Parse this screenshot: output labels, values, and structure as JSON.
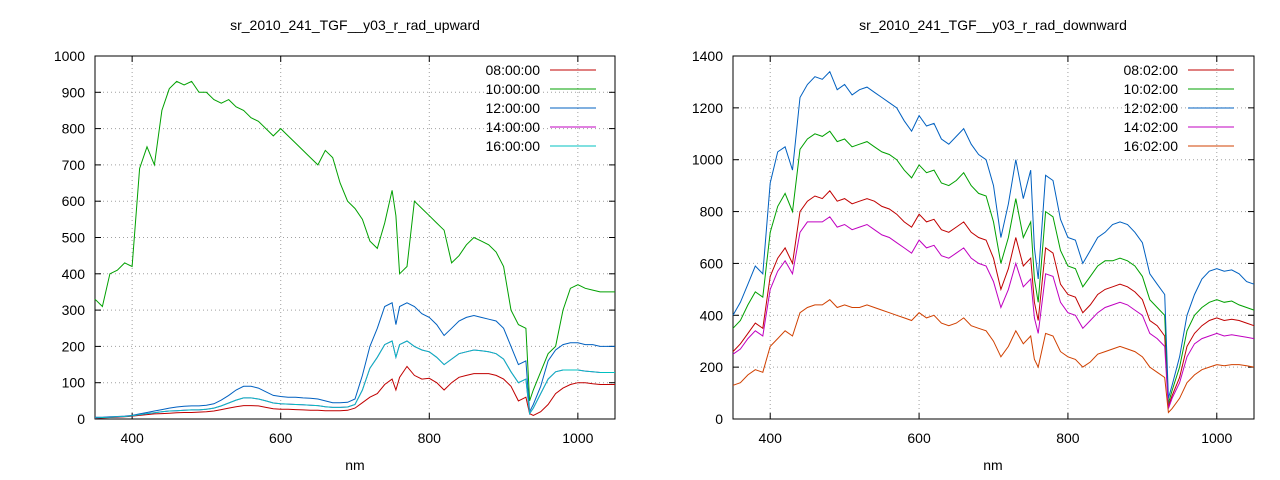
{
  "chart_data": [
    {
      "type": "line",
      "title": "sr_2010_241_TGF__y03_r_rad_upward",
      "xlabel": "nm",
      "ylabel": "",
      "xlim": [
        350,
        1050
      ],
      "ylim": [
        0,
        1000
      ],
      "xticks": [
        400,
        600,
        800,
        1000
      ],
      "yticks": [
        0,
        100,
        200,
        300,
        400,
        500,
        600,
        700,
        800,
        900,
        1000
      ],
      "grid": true,
      "legend_position": "top-right",
      "x": [
        350,
        360,
        370,
        380,
        390,
        400,
        410,
        420,
        430,
        440,
        450,
        460,
        470,
        480,
        490,
        500,
        510,
        520,
        530,
        540,
        550,
        560,
        570,
        580,
        590,
        600,
        610,
        620,
        630,
        640,
        650,
        660,
        670,
        680,
        690,
        700,
        710,
        720,
        730,
        740,
        750,
        755,
        760,
        770,
        780,
        790,
        800,
        810,
        820,
        830,
        840,
        850,
        860,
        870,
        880,
        890,
        900,
        910,
        920,
        930,
        935,
        940,
        950,
        960,
        970,
        980,
        990,
        1000,
        1010,
        1020,
        1030,
        1040,
        1050
      ],
      "series": [
        {
          "name": "08:00:00",
          "color": "#c00000",
          "values": [
            2,
            3,
            4,
            5,
            6,
            8,
            10,
            12,
            14,
            15,
            16,
            17,
            18,
            18,
            19,
            20,
            22,
            26,
            30,
            34,
            37,
            37,
            36,
            32,
            28,
            27,
            27,
            26,
            25,
            24,
            24,
            23,
            23,
            23,
            24,
            30,
            45,
            60,
            70,
            95,
            110,
            80,
            115,
            145,
            120,
            110,
            112,
            100,
            80,
            100,
            115,
            120,
            125,
            125,
            125,
            120,
            110,
            90,
            50,
            60,
            15,
            10,
            20,
            40,
            70,
            85,
            95,
            100,
            100,
            97,
            95,
            95,
            95
          ]
        },
        {
          "name": "10:00:00",
          "color": "#00a000",
          "values": [
            330,
            310,
            400,
            410,
            430,
            420,
            690,
            750,
            700,
            850,
            910,
            930,
            920,
            930,
            900,
            900,
            880,
            870,
            880,
            860,
            850,
            830,
            820,
            800,
            780,
            800,
            780,
            760,
            740,
            720,
            700,
            740,
            720,
            650,
            600,
            580,
            550,
            490,
            470,
            540,
            630,
            560,
            400,
            420,
            600,
            580,
            560,
            540,
            520,
            430,
            450,
            480,
            500,
            490,
            480,
            460,
            420,
            300,
            260,
            250,
            50,
            80,
            130,
            180,
            200,
            300,
            360,
            370,
            360,
            355,
            350,
            350,
            350
          ]
        },
        {
          "name": "12:00:00",
          "color": "#0060c0",
          "values": [
            5,
            5,
            6,
            7,
            8,
            10,
            14,
            18,
            22,
            26,
            30,
            33,
            35,
            36,
            36,
            38,
            42,
            52,
            65,
            80,
            90,
            90,
            85,
            75,
            65,
            62,
            60,
            60,
            58,
            57,
            55,
            50,
            45,
            45,
            46,
            55,
            120,
            200,
            250,
            310,
            320,
            260,
            310,
            320,
            310,
            290,
            280,
            260,
            230,
            250,
            270,
            280,
            285,
            280,
            275,
            270,
            250,
            200,
            150,
            160,
            20,
            40,
            90,
            160,
            190,
            205,
            210,
            210,
            205,
            205,
            200,
            200,
            200
          ]
        },
        {
          "name": "14:00:00",
          "color": "#c000c0",
          "values": [
            3,
            4,
            5,
            6,
            7,
            9,
            12,
            15,
            17,
            20,
            22,
            23,
            24,
            25,
            25,
            27,
            30,
            36,
            44,
            52,
            58,
            58,
            55,
            50,
            44,
            42,
            41,
            40,
            39,
            38,
            37,
            34,
            32,
            32,
            33,
            40,
            80,
            140,
            170,
            205,
            215,
            170,
            205,
            215,
            200,
            190,
            185,
            170,
            150,
            165,
            180,
            185,
            190,
            188,
            185,
            180,
            165,
            130,
            100,
            110,
            15,
            30,
            70,
            110,
            130,
            135,
            135,
            135,
            132,
            130,
            128,
            128,
            128
          ]
        },
        {
          "name": "16:00:00",
          "color": "#00c0c0",
          "values": [
            3,
            4,
            5,
            6,
            7,
            9,
            12,
            15,
            17,
            20,
            22,
            23,
            24,
            25,
            25,
            27,
            30,
            36,
            44,
            52,
            58,
            58,
            55,
            50,
            44,
            42,
            41,
            40,
            39,
            38,
            37,
            34,
            32,
            32,
            33,
            40,
            80,
            140,
            170,
            205,
            215,
            170,
            205,
            215,
            200,
            190,
            185,
            170,
            150,
            165,
            180,
            185,
            190,
            188,
            185,
            180,
            165,
            130,
            100,
            110,
            15,
            30,
            70,
            110,
            130,
            135,
            135,
            135,
            132,
            130,
            128,
            128,
            128
          ]
        }
      ]
    },
    {
      "type": "line",
      "title": "sr_2010_241_TGF__y03_r_rad_downward",
      "xlabel": "nm",
      "ylabel": "",
      "xlim": [
        350,
        1050
      ],
      "ylim": [
        0,
        1400
      ],
      "xticks": [
        400,
        600,
        800,
        1000
      ],
      "yticks": [
        0,
        200,
        400,
        600,
        800,
        1000,
        1200,
        1400
      ],
      "grid": true,
      "legend_position": "top-right",
      "x": [
        350,
        360,
        370,
        380,
        390,
        400,
        410,
        420,
        430,
        440,
        450,
        460,
        470,
        480,
        490,
        500,
        510,
        520,
        530,
        540,
        550,
        560,
        570,
        580,
        590,
        600,
        610,
        620,
        630,
        640,
        650,
        660,
        670,
        680,
        690,
        700,
        710,
        720,
        730,
        740,
        750,
        755,
        760,
        770,
        780,
        790,
        800,
        810,
        820,
        830,
        840,
        850,
        860,
        870,
        880,
        890,
        900,
        910,
        920,
        930,
        935,
        940,
        950,
        960,
        970,
        980,
        990,
        1000,
        1010,
        1020,
        1030,
        1040,
        1050
      ],
      "series": [
        {
          "name": "08:02:00",
          "color": "#c00000",
          "values": [
            260,
            290,
            330,
            370,
            350,
            550,
            620,
            660,
            600,
            800,
            840,
            860,
            850,
            880,
            840,
            850,
            830,
            840,
            850,
            840,
            820,
            810,
            790,
            760,
            740,
            790,
            760,
            770,
            730,
            720,
            740,
            760,
            720,
            700,
            690,
            620,
            500,
            580,
            700,
            590,
            620,
            450,
            380,
            660,
            640,
            520,
            480,
            470,
            410,
            440,
            480,
            500,
            510,
            520,
            510,
            490,
            460,
            380,
            360,
            320,
            50,
            90,
            160,
            280,
            330,
            360,
            380,
            390,
            380,
            385,
            380,
            370,
            360
          ]
        },
        {
          "name": "10:02:00",
          "color": "#00a000",
          "values": [
            350,
            380,
            440,
            490,
            470,
            720,
            820,
            870,
            800,
            1040,
            1080,
            1100,
            1090,
            1110,
            1070,
            1080,
            1050,
            1060,
            1070,
            1050,
            1030,
            1020,
            1000,
            960,
            930,
            980,
            950,
            960,
            910,
            900,
            920,
            950,
            900,
            870,
            860,
            760,
            600,
            700,
            850,
            700,
            760,
            540,
            450,
            800,
            780,
            650,
            590,
            580,
            510,
            550,
            590,
            610,
            610,
            620,
            610,
            590,
            550,
            460,
            430,
            400,
            60,
            110,
            200,
            340,
            400,
            430,
            450,
            460,
            450,
            455,
            440,
            430,
            420
          ]
        },
        {
          "name": "12:02:00",
          "color": "#0060c0",
          "values": [
            400,
            450,
            520,
            590,
            560,
            910,
            1030,
            1050,
            960,
            1240,
            1290,
            1320,
            1310,
            1340,
            1270,
            1290,
            1250,
            1270,
            1280,
            1260,
            1240,
            1220,
            1200,
            1150,
            1110,
            1170,
            1130,
            1140,
            1080,
            1060,
            1090,
            1120,
            1060,
            1020,
            1000,
            900,
            700,
            830,
            1000,
            850,
            960,
            660,
            540,
            940,
            920,
            770,
            700,
            690,
            600,
            650,
            700,
            720,
            750,
            760,
            750,
            720,
            680,
            560,
            520,
            480,
            80,
            130,
            240,
            400,
            480,
            540,
            570,
            580,
            570,
            575,
            560,
            530,
            520
          ]
        },
        {
          "name": "14:02:00",
          "color": "#c000c0",
          "values": [
            250,
            270,
            310,
            340,
            320,
            500,
            570,
            610,
            560,
            720,
            760,
            760,
            760,
            780,
            740,
            750,
            730,
            740,
            750,
            730,
            710,
            700,
            680,
            660,
            640,
            690,
            660,
            670,
            630,
            620,
            640,
            660,
            620,
            600,
            590,
            530,
            430,
            500,
            600,
            510,
            540,
            390,
            330,
            560,
            550,
            450,
            410,
            400,
            350,
            380,
            410,
            430,
            440,
            450,
            440,
            420,
            400,
            330,
            310,
            280,
            40,
            80,
            140,
            240,
            290,
            310,
            320,
            330,
            320,
            325,
            320,
            315,
            310
          ]
        },
        {
          "name": "16:02:00",
          "color": "#d04000",
          "values": [
            130,
            140,
            170,
            190,
            180,
            280,
            310,
            340,
            320,
            410,
            430,
            440,
            440,
            460,
            430,
            440,
            430,
            430,
            440,
            430,
            420,
            410,
            400,
            390,
            380,
            410,
            390,
            400,
            370,
            360,
            370,
            390,
            360,
            350,
            340,
            300,
            240,
            280,
            340,
            290,
            320,
            230,
            200,
            330,
            320,
            260,
            240,
            230,
            200,
            220,
            250,
            260,
            270,
            280,
            270,
            260,
            240,
            200,
            180,
            160,
            25,
            40,
            80,
            140,
            170,
            190,
            200,
            210,
            205,
            210,
            210,
            205,
            200
          ]
        }
      ]
    }
  ]
}
